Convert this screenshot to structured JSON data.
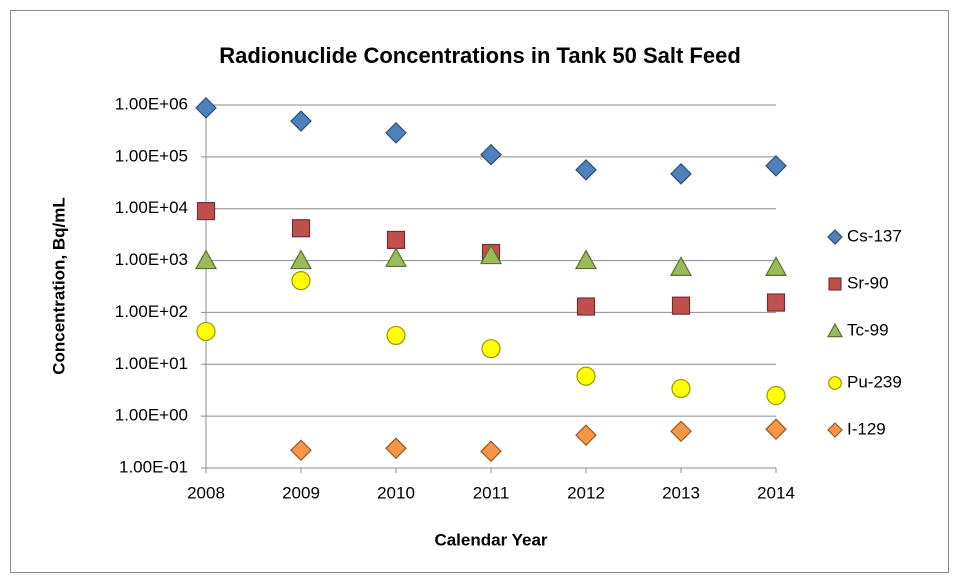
{
  "chart_data": {
    "type": "scatter",
    "title": "Radionuclide Concentrations in Tank 50 Salt Feed",
    "x_label": "Calendar Year",
    "y_label": "Concentration, Bq/mL",
    "x": [
      2008,
      2009,
      2010,
      2011,
      2012,
      2013,
      2014
    ],
    "xlim": [
      2008,
      2014
    ],
    "xticks": [
      2008,
      2009,
      2010,
      2011,
      2012,
      2013,
      2014
    ],
    "ylim": [
      0.1,
      1000000
    ],
    "yticks": [
      {
        "value": 0.1,
        "label": "1.00E-01"
      },
      {
        "value": 1,
        "label": "1.00E+00"
      },
      {
        "value": 10,
        "label": "1.00E+01"
      },
      {
        "value": 100,
        "label": "1.00E+02"
      },
      {
        "value": 1000,
        "label": "1.00E+03"
      },
      {
        "value": 10000,
        "label": "1.00E+04"
      },
      {
        "value": 100000,
        "label": "1.00E+05"
      },
      {
        "value": 1000000,
        "label": "1.00E+06"
      }
    ],
    "y_log": true,
    "grid": true,
    "legend": "right",
    "series": [
      {
        "name": "Cs-137",
        "color": "#4f81bd",
        "marker": "diamond",
        "values": [
          880000,
          490000,
          290000,
          110000,
          56000,
          47000,
          67000
        ]
      },
      {
        "name": "Sr-90",
        "color": "#c0504d",
        "marker": "square",
        "values": [
          9000,
          4200,
          2500,
          1400,
          130,
          135,
          155
        ]
      },
      {
        "name": "Tc-99",
        "color": "#9bbb59",
        "marker": "triangle",
        "values": [
          1000,
          1000,
          1100,
          1250,
          1000,
          740,
          740
        ]
      },
      {
        "name": "Pu-239",
        "color": "#ffff00",
        "marker": "circle",
        "values": [
          43,
          410,
          36,
          20,
          5.9,
          3.4,
          2.5
        ]
      },
      {
        "name": "I-129",
        "color": "#f79646",
        "marker": "diamond",
        "values": [
          null,
          0.22,
          0.24,
          0.21,
          0.43,
          0.51,
          0.56
        ]
      }
    ]
  }
}
